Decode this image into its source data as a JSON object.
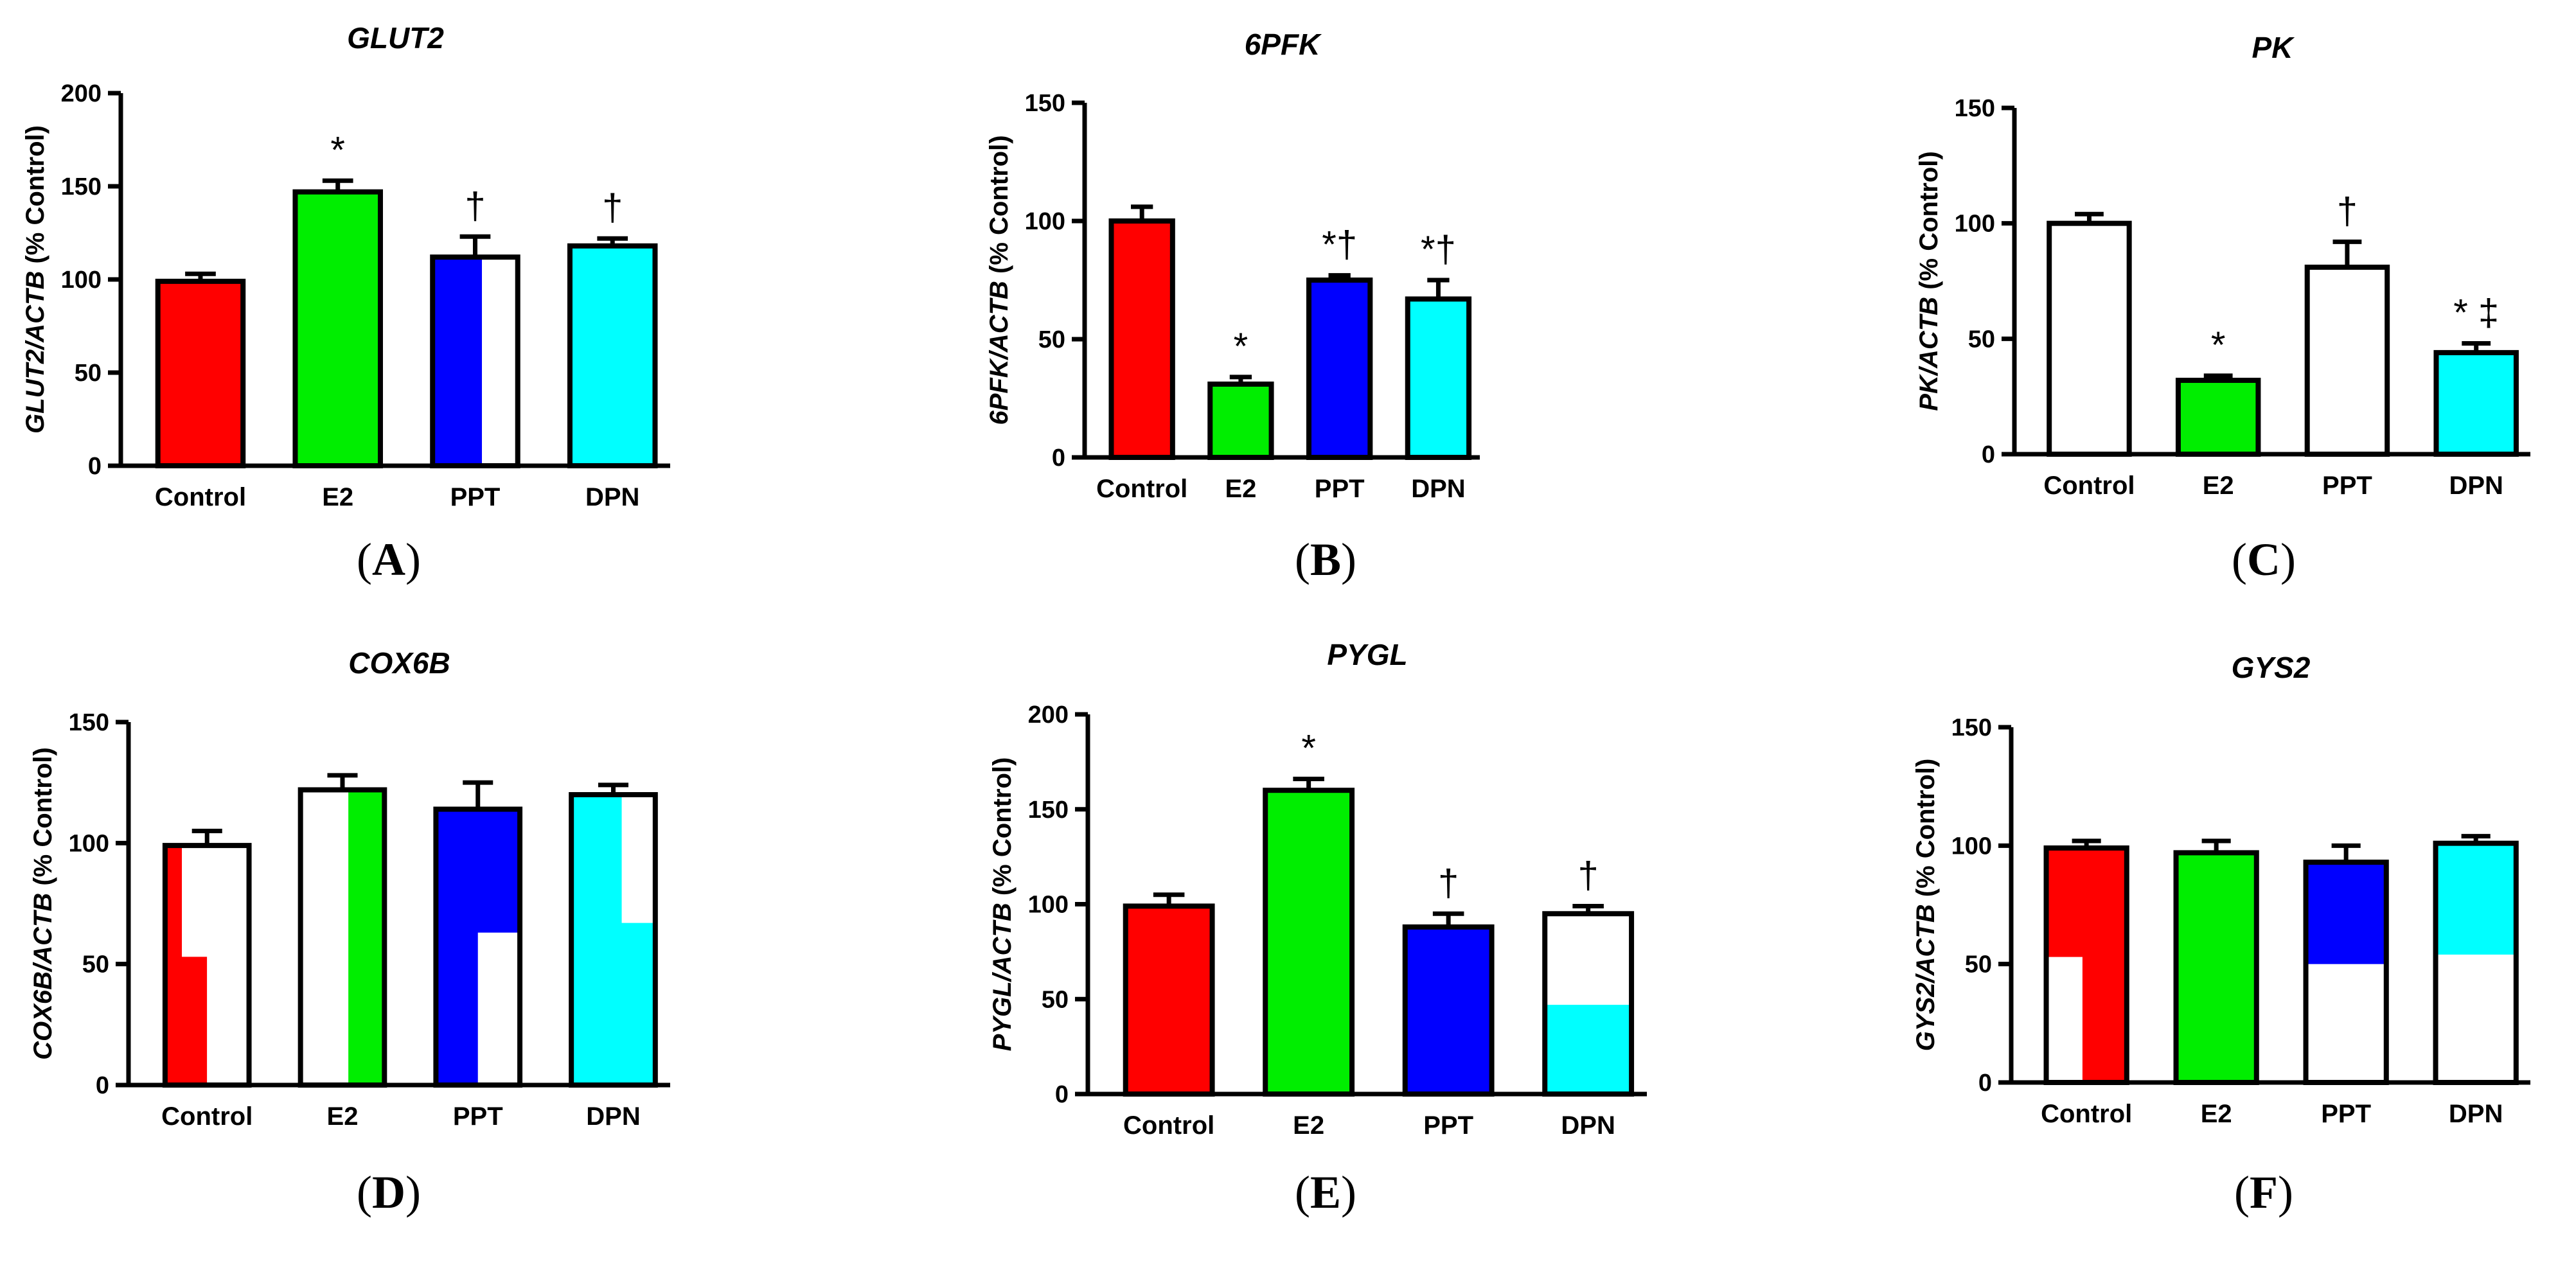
{
  "chart_data": [
    {
      "id": "A",
      "panel_label": "A",
      "type": "bar",
      "title": "GLUT2",
      "ylabel": "GLUT2/ACTB (% Control)",
      "ylabel_gene": "GLUT2/ACTB",
      "ylabel_rest": " (% Control)",
      "ylim": [
        0,
        200
      ],
      "yticks": [
        0,
        50,
        100,
        150,
        200
      ],
      "categories": [
        "Control",
        "E2",
        "PPT",
        "DPN"
      ],
      "values": [
        99,
        147,
        112,
        118
      ],
      "errors": [
        4,
        6,
        11,
        4
      ],
      "annotations": [
        "",
        "*",
        "†",
        "†"
      ]
    },
    {
      "id": "B",
      "panel_label": "B",
      "type": "bar",
      "title": "6PFK",
      "ylabel": "6PFK/ACTB (% Control)",
      "ylabel_gene": "6PFK/ACTB",
      "ylabel_rest": " (% Control)",
      "ylim": [
        0,
        150
      ],
      "yticks": [
        0,
        50,
        100,
        150
      ],
      "categories": [
        "Control",
        "E2",
        "PPT",
        "DPN"
      ],
      "values": [
        100,
        31,
        75,
        67
      ],
      "errors": [
        6,
        3,
        2,
        8
      ],
      "annotations": [
        "",
        "*",
        "*†",
        "*†"
      ]
    },
    {
      "id": "C",
      "panel_label": "C",
      "type": "bar",
      "title": "PK",
      "ylabel": "PK/ACTB (% Control)",
      "ylabel_gene": "PK/ACTB",
      "ylabel_rest": " (% Control)",
      "ylim": [
        0,
        150
      ],
      "yticks": [
        0,
        50,
        100,
        150
      ],
      "categories": [
        "Control",
        "E2",
        "PPT",
        "DPN"
      ],
      "values": [
        100,
        32,
        81,
        44
      ],
      "errors": [
        4,
        2,
        11,
        4
      ],
      "annotations": [
        "",
        "*",
        "†",
        "* ‡"
      ]
    },
    {
      "id": "D",
      "panel_label": "D",
      "type": "bar",
      "title": "COX6B",
      "ylabel": "COX6B/ACTB (% Control)",
      "ylabel_gene": "COX6B/ACTB",
      "ylabel_rest": " (% Control)",
      "ylim": [
        0,
        150
      ],
      "yticks": [
        0,
        50,
        100,
        150
      ],
      "categories": [
        "Control",
        "E2",
        "PPT",
        "DPN"
      ],
      "values": [
        99,
        122,
        114,
        120
      ],
      "errors": [
        6,
        6,
        11,
        4
      ],
      "annotations": [
        "",
        "",
        "",
        ""
      ]
    },
    {
      "id": "E",
      "panel_label": "E",
      "type": "bar",
      "title": "PYGL",
      "ylabel": "PYGL/ACTB (% Control)",
      "ylabel_gene": "PYGL/ACTB",
      "ylabel_rest": " (% Control)",
      "ylim": [
        0,
        200
      ],
      "yticks": [
        0,
        50,
        100,
        150,
        200
      ],
      "categories": [
        "Control",
        "E2",
        "PPT",
        "DPN"
      ],
      "values": [
        99,
        160,
        88,
        95
      ],
      "errors": [
        6,
        6,
        7,
        4
      ],
      "annotations": [
        "",
        "*",
        "†",
        "†"
      ]
    },
    {
      "id": "F",
      "panel_label": "F",
      "type": "bar",
      "title": "GYS2",
      "ylabel": "GYS2/ACTB (% Control)",
      "ylabel_gene": "GYS2/ACTB",
      "ylabel_rest": " (% Control)",
      "ylim": [
        0,
        150
      ],
      "yticks": [
        0,
        50,
        100,
        150
      ],
      "categories": [
        "Control",
        "E2",
        "PPT",
        "DPN"
      ],
      "values": [
        99,
        97,
        93,
        101
      ],
      "errors": [
        3,
        5,
        7,
        3
      ],
      "annotations": [
        "",
        "",
        "",
        ""
      ]
    }
  ],
  "colors": {
    "control": "#ff0000",
    "e2": "#00ee00",
    "ppt": "#0000ff",
    "dpn": "#00ffff",
    "white": "#ffffff",
    "axis": "#000000"
  },
  "bar_fills": {
    "A": [
      [
        [
          "control",
          0,
          1
        ]
      ],
      [
        [
          "e2",
          0,
          1
        ]
      ],
      [
        [
          "ppt",
          0,
          0.58
        ],
        [
          "white",
          0.58,
          1
        ]
      ],
      [
        [
          "dpn",
          0,
          1
        ]
      ]
    ],
    "B": [
      [
        [
          "control",
          0,
          1
        ]
      ],
      [
        [
          "e2",
          0,
          1
        ]
      ],
      [
        [
          "ppt",
          0,
          1
        ]
      ],
      [
        [
          "dpn",
          0,
          1
        ]
      ]
    ],
    "C": [
      [
        [
          "white",
          0,
          1
        ]
      ],
      [
        [
          "e2",
          0,
          1
        ]
      ],
      [
        [
          "white",
          0,
          1
        ]
      ],
      [
        [
          "dpn",
          0,
          1
        ]
      ]
    ],
    "D": [
      [
        [
          "control",
          0,
          0.5
        ],
        [
          "white",
          0.5,
          1
        ]
      ],
      [
        [
          "white",
          0,
          0.57
        ],
        [
          "e2",
          0.57,
          1
        ]
      ],
      [
        [
          "ppt",
          0,
          1
        ]
      ],
      [
        [
          "dpn",
          0,
          1
        ]
      ]
    ],
    "E": [
      [
        [
          "control",
          0,
          1
        ]
      ],
      [
        [
          "e2",
          0,
          1
        ]
      ],
      [
        [
          "ppt",
          0,
          1
        ]
      ],
      [
        [
          "dpn",
          0,
          1
        ]
      ]
    ],
    "F": [
      [
        [
          "control",
          0,
          1
        ]
      ],
      [
        [
          "e2",
          0,
          1
        ]
      ],
      [
        [
          "ppt",
          0,
          1
        ]
      ],
      [
        [
          "dpn",
          0,
          1
        ]
      ]
    ]
  },
  "overlays": {
    "A": [],
    "B": [],
    "C": [],
    "D": [
      {
        "bar": 0,
        "x0": 0.2,
        "x1": 1,
        "y0": 53,
        "y1": 99,
        "color": "white"
      },
      {
        "bar": 2,
        "x0": 0.5,
        "x1": 1,
        "y0": 0,
        "y1": 63,
        "color": "white"
      },
      {
        "bar": 3,
        "x0": 0.6,
        "x1": 1,
        "y0": 67,
        "y1": 120,
        "color": "white"
      }
    ],
    "E": [
      {
        "bar": 3,
        "x0": 0,
        "x1": 1,
        "y0": 47,
        "y1": 95,
        "color": "white"
      }
    ],
    "F": [
      {
        "bar": 0,
        "x0": 0,
        "x1": 0.45,
        "y0": 0,
        "y1": 53,
        "color": "white"
      },
      {
        "bar": 2,
        "x0": 0,
        "x1": 1,
        "y0": 0,
        "y1": 50,
        "color": "white"
      },
      {
        "bar": 3,
        "x0": 0,
        "x1": 1,
        "y0": 0,
        "y1": 54,
        "color": "white"
      }
    ]
  }
}
